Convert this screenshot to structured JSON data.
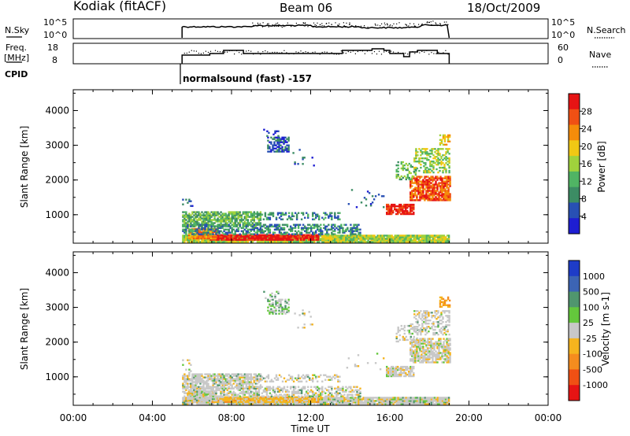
{
  "header": {
    "station": "Kodiak (fitACF)",
    "beam": "Beam 06",
    "date": "18/Oct/2009"
  },
  "nsky_panel": {
    "left_label": "N.Sky",
    "right_label": "N.Search",
    "left_ticks": [
      "10^5",
      "10^0"
    ],
    "right_ticks": [
      "10^5",
      "10^0"
    ]
  },
  "freq_panel": {
    "left_label_1": "Freq.",
    "left_label_2": "[MHz]",
    "right_label": "Nave",
    "left_ticks": [
      "18",
      "8"
    ],
    "right_ticks": [
      "60",
      "0"
    ]
  },
  "cpid": {
    "label": "CPID",
    "text": "normalsound (fast) -157"
  },
  "colors": {
    "power_scale": [
      "#1e1ed2",
      "#2850b4",
      "#3c8c64",
      "#50b464",
      "#a0d23c",
      "#f0c814",
      "#f58c0a",
      "#f05014",
      "#e61414"
    ],
    "velocity_scale": [
      "#1e3cc8",
      "#3c64b4",
      "#50966e",
      "#64c83c",
      "#c8c8c8",
      "#f5b41e",
      "#f58c1e",
      "#f05014",
      "#e61414"
    ]
  },
  "chart_data": [
    {
      "type": "heatmap",
      "name": "power",
      "ylabel": "Slant Range [km]",
      "y_ticks": [
        "1000",
        "2000",
        "3000",
        "4000"
      ],
      "ylim": [
        180,
        4600
      ],
      "xlim": [
        0,
        24
      ],
      "x_ticks": [
        "00:00",
        "04:00",
        "08:00",
        "12:00",
        "16:00",
        "20:00",
        "00:00"
      ],
      "colorbar_label": "Power [dB]",
      "colorbar_ticks": [
        "4",
        "8",
        "12",
        "16",
        "20",
        "24",
        "28"
      ],
      "colorbar_range": [
        0,
        32
      ]
    },
    {
      "type": "heatmap",
      "name": "velocity",
      "ylabel": "Slant Range [km]",
      "y_ticks": [
        "1000",
        "2000",
        "3000",
        "4000"
      ],
      "ylim": [
        180,
        4600
      ],
      "xlim": [
        0,
        24
      ],
      "x_ticks": [
        "00:00",
        "04:00",
        "08:00",
        "12:00",
        "16:00",
        "20:00",
        "00:00"
      ],
      "xlabel": "Time UT",
      "colorbar_label": "Velocity [m s-1]",
      "colorbar_ticks": [
        "1000",
        "500",
        "100",
        "25",
        "-25",
        "-100",
        "-500",
        "-1000"
      ]
    }
  ]
}
